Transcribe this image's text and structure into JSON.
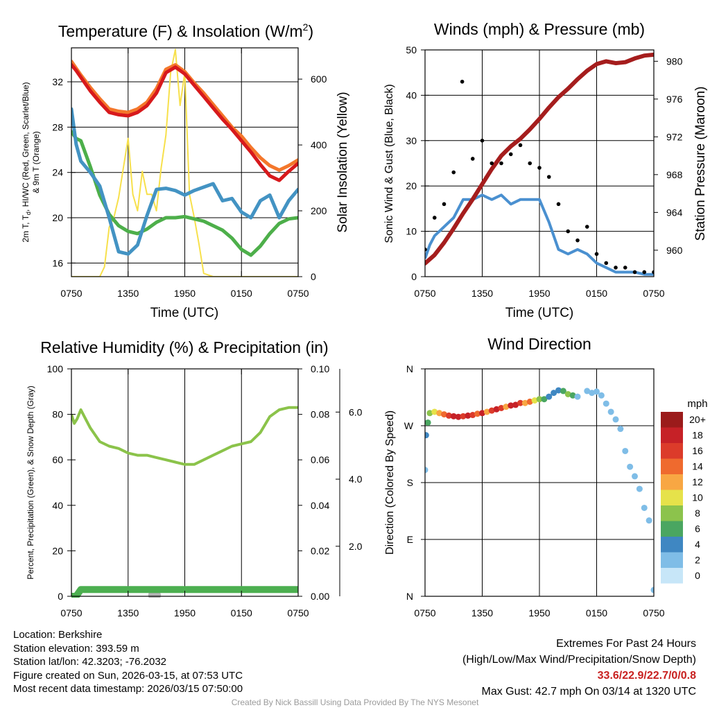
{
  "colors": {
    "temp": "#d7191c",
    "wc": "#f4772b",
    "dew": "#4393c3",
    "hi": "#4daf4a",
    "solar": "#f7e04b",
    "gust": "#000000",
    "wind": "#4a90d0",
    "pressure": "#a51d1d",
    "rh": "#8bc34a",
    "precip": "#4caf50",
    "snow": "#b3b3b3",
    "extremes": "#c8201f"
  },
  "chart_data": [
    {
      "type": "line",
      "id": "temperature",
      "title": "Temperature (F) & Insolation (W/m²)",
      "xlabel": "Time (UTC)",
      "ylabel": "2m T, T_d, HI/WC (Red, Green, Scarlet/Blue) & 9m T (Orange)",
      "ylabel_line1": "2m T, T",
      "ylabel_sub": "d",
      "ylabel_line1_rest": ", HI/WC (Red, Green, Scarlet/Blue)",
      "ylabel_line2": "& 9m T (Orange)",
      "y2label": "Solar Insolation (Yellow)",
      "xticks": [
        "0750",
        "1350",
        "1950",
        "0150",
        "0750"
      ],
      "x_range_hours": [
        0,
        24
      ],
      "ylim": [
        14.8,
        35
      ],
      "yticks": [
        16,
        20,
        24,
        28,
        32
      ],
      "y2lim": [
        0,
        695
      ],
      "y2ticks": [
        0,
        200,
        400,
        600
      ],
      "series": [
        {
          "name": "9m T",
          "color_key": "wc",
          "axis": "left",
          "x": [
            0,
            0.5,
            1,
            2,
            3,
            4,
            5,
            6,
            7,
            8,
            9,
            10,
            11,
            12,
            13,
            14,
            15,
            16,
            17,
            18,
            19,
            20,
            21,
            22,
            23,
            24
          ],
          "y": [
            33.8,
            33.2,
            32.6,
            31.5,
            30.5,
            29.6,
            29.4,
            29.3,
            29.6,
            30.2,
            31.4,
            33.1,
            33.5,
            32.9,
            31.9,
            31.0,
            30.0,
            29.0,
            28.0,
            27.2,
            26.2,
            25.3,
            24.6,
            24.2,
            24.6,
            25.1
          ]
        },
        {
          "name": "2m T",
          "color_key": "temp",
          "axis": "left",
          "x": [
            0,
            0.5,
            1,
            2,
            3,
            4,
            5,
            6,
            7,
            8,
            9,
            10,
            11,
            12,
            13,
            14,
            15,
            16,
            17,
            18,
            19,
            20,
            21,
            22,
            23,
            24
          ],
          "y": [
            33.5,
            33.0,
            32.4,
            31.2,
            30.2,
            29.3,
            29.1,
            29.0,
            29.3,
            29.9,
            31.0,
            32.8,
            33.3,
            32.7,
            31.7,
            30.7,
            29.7,
            28.7,
            27.8,
            26.8,
            25.8,
            24.7,
            23.7,
            23.3,
            24.1,
            24.8
          ]
        },
        {
          "name": "Dew point",
          "color_key": "dew",
          "axis": "left",
          "x": [
            0,
            0.5,
            1,
            2,
            3,
            4,
            5,
            6,
            7,
            8,
            9,
            10,
            11,
            12,
            13,
            14,
            15,
            16,
            17,
            18,
            19,
            20,
            21,
            22,
            23,
            24
          ],
          "y": [
            29.6,
            26.5,
            25.0,
            24.0,
            22.8,
            20.0,
            17.0,
            16.8,
            17.6,
            20.2,
            22.5,
            22.6,
            22.4,
            22.0,
            22.4,
            22.7,
            23.0,
            21.5,
            21.7,
            20.5,
            20.0,
            21.5,
            22.0,
            20.0,
            21.5,
            22.5
          ]
        },
        {
          "name": "HI/WC",
          "color_key": "hi",
          "axis": "left",
          "x": [
            0,
            0.5,
            1,
            2,
            3,
            4,
            5,
            6,
            7,
            8,
            9,
            10,
            11,
            12,
            13,
            14,
            15,
            16,
            17,
            18,
            19,
            20,
            21,
            22,
            23,
            24
          ],
          "y": [
            27.6,
            27.0,
            26.8,
            24.5,
            22.0,
            20.3,
            19.3,
            18.8,
            18.6,
            19.0,
            19.6,
            20.0,
            20.0,
            20.1,
            19.9,
            19.7,
            19.3,
            18.9,
            18.2,
            17.2,
            16.7,
            17.5,
            18.6,
            19.5,
            19.9,
            20.0
          ]
        },
        {
          "name": "Solar",
          "color_key": "solar",
          "axis": "right",
          "x": [
            0,
            2,
            3,
            3.5,
            4,
            4.5,
            5,
            5.5,
            6,
            6.5,
            7,
            7.5,
            8,
            8.5,
            9,
            9.5,
            10,
            10.5,
            11,
            11.5,
            12,
            12.5,
            13,
            13.5,
            14,
            15,
            16,
            17,
            18,
            19,
            20,
            21,
            22,
            23,
            24
          ],
          "y": [
            0,
            0,
            0,
            30,
            150,
            180,
            240,
            330,
            420,
            250,
            200,
            320,
            250,
            250,
            200,
            330,
            430,
            620,
            690,
            520,
            620,
            250,
            180,
            100,
            10,
            0,
            0,
            0,
            0,
            0,
            0,
            0,
            0,
            0,
            0
          ]
        }
      ]
    },
    {
      "type": "line",
      "id": "winds",
      "title": "Winds (mph) & Pressure (mb)",
      "xlabel": "Time (UTC)",
      "ylabel": "Sonic Wind & Gust (Blue, Black)",
      "y2label": "Station Pressure (Maroon)",
      "xticks": [
        "0750",
        "1350",
        "1950",
        "0150",
        "0750"
      ],
      "x_range_hours": [
        0,
        24
      ],
      "ylim": [
        0,
        50
      ],
      "yticks": [
        0,
        10,
        20,
        30,
        40,
        50
      ],
      "y2lim": [
        957.2,
        981.2
      ],
      "y2ticks": [
        960,
        964,
        968,
        972,
        976,
        980
      ],
      "series": [
        {
          "name": "Sonic Wind",
          "color_key": "wind",
          "axis": "left",
          "x": [
            0,
            0.5,
            1,
            2,
            3,
            4,
            5,
            6,
            7,
            8,
            9,
            10,
            11,
            12,
            13,
            14,
            15,
            16,
            17,
            18,
            19,
            20,
            21,
            22,
            23,
            24
          ],
          "y": [
            4,
            7,
            9,
            11,
            13,
            17,
            17,
            18,
            17,
            18,
            16,
            17,
            17,
            17,
            12,
            6,
            5,
            6,
            5,
            3,
            2,
            1,
            1,
            1,
            0.5,
            0.5
          ]
        },
        {
          "name": "Station Pressure",
          "color_key": "pressure",
          "axis": "right",
          "x": [
            0,
            1,
            2,
            3,
            4,
            5,
            6,
            7,
            8,
            9,
            10,
            11,
            12,
            13,
            14,
            15,
            16,
            17,
            18,
            19,
            20,
            21,
            22,
            23,
            24
          ],
          "y": [
            958.6,
            959.5,
            960.8,
            962.3,
            963.9,
            965.4,
            967.0,
            968.6,
            970.0,
            971.0,
            971.8,
            972.8,
            973.9,
            975.1,
            976.2,
            977.1,
            978.1,
            979.0,
            979.7,
            980.0,
            979.8,
            979.9,
            980.3,
            980.6,
            980.7
          ]
        },
        {
          "name": "Gust",
          "color_key": "gust",
          "axis": "left",
          "type": "scatter",
          "x": [
            0,
            1,
            2,
            3,
            3.9,
            5,
            6,
            7,
            8,
            9,
            10,
            11,
            12,
            13,
            14,
            15,
            16,
            17,
            18,
            19,
            20,
            21,
            22,
            23,
            24
          ],
          "y": [
            6,
            13,
            16,
            23,
            43,
            26,
            30,
            25,
            25,
            27,
            29,
            25,
            24,
            22,
            16,
            10,
            8,
            11,
            5,
            3,
            2,
            2,
            1,
            1,
            1
          ]
        }
      ]
    },
    {
      "type": "line",
      "id": "humidity",
      "title": "Relative Humidity (%) & Precipitation (in)",
      "ylabel": "Percent, Precipitation (Green), & Snow Depth (Gray)",
      "xticks": [
        "0750",
        "1350",
        "1950",
        "0150",
        "0750"
      ],
      "x_range_hours": [
        0,
        24
      ],
      "ylim": [
        0,
        100
      ],
      "yticks": [
        0,
        20,
        40,
        60,
        80,
        100
      ],
      "y2lim": [
        0,
        0.1
      ],
      "y2ticks": [
        "0.00",
        "0.02",
        "0.04",
        "0.06",
        "0.08",
        "0.10"
      ],
      "y3ticks": [
        "2.0",
        "4.0",
        "6.0"
      ],
      "series": [
        {
          "name": "RH",
          "color_key": "rh",
          "axis": "left",
          "x": [
            0,
            0.3,
            0.6,
            1,
            1.5,
            2,
            3,
            4,
            5,
            6,
            7,
            8,
            9,
            10,
            11,
            12,
            13,
            14,
            15,
            16,
            17,
            18,
            19,
            20,
            21,
            22,
            23,
            24
          ],
          "y": [
            80,
            76,
            78,
            82,
            78,
            74,
            68,
            66,
            65,
            63,
            62,
            62,
            61,
            60,
            59,
            58,
            58,
            60,
            62,
            64,
            66,
            67,
            68,
            72,
            79,
            82,
            83,
            83
          ]
        },
        {
          "name": "Precipitation",
          "color_key": "precip",
          "axis": "right",
          "x": [
            0,
            0.5,
            1,
            24
          ],
          "y": [
            0,
            0,
            0.003,
            0.003
          ]
        },
        {
          "name": "Snow Depth",
          "color_key": "snow",
          "axis": "left",
          "x": [
            8.6,
            8.8,
            9.0
          ],
          "y": [
            0.5,
            1.5,
            0.5
          ]
        }
      ]
    },
    {
      "type": "scatter",
      "id": "wind-direction",
      "title": "Wind Direction",
      "ylabel": "Direction (Colored By Speed)",
      "xticks": [
        "0750",
        "1350",
        "1950",
        "0150",
        "0750"
      ],
      "x_range_hours": [
        0,
        24
      ],
      "yticks": [
        "N",
        "E",
        "S",
        "W",
        "N"
      ],
      "ylim_degrees": [
        0,
        360
      ],
      "colorbar_title": "mph",
      "colorbar_labels": [
        "20+",
        "18",
        "16",
        "14",
        "12",
        "10",
        "8",
        "6",
        "4",
        "2",
        "0"
      ],
      "colorbar_colors": [
        "#9b1b1b",
        "#c62127",
        "#dc3b2a",
        "#ef6a2e",
        "#f8a743",
        "#e6e24a",
        "#8cc34c",
        "#4aa661",
        "#3f87c2",
        "#7fbde7",
        "#c7e6f8"
      ],
      "x": [
        0,
        0.1,
        0.3,
        0.5,
        1,
        1.5,
        2,
        2.5,
        3,
        3.5,
        4,
        4.5,
        5,
        5.5,
        6,
        6.5,
        7,
        7.5,
        8,
        8.5,
        9,
        9.5,
        10,
        10.5,
        11,
        11.5,
        12,
        12.5,
        13,
        13.5,
        14,
        14.5,
        15,
        15.5,
        16,
        17,
        17.5,
        18,
        18.5,
        19,
        19.5,
        20,
        20.5,
        21,
        21.5,
        22,
        22.5,
        23,
        23.5,
        24
      ],
      "y": [
        200,
        255,
        275,
        290,
        292,
        290,
        288,
        286,
        285,
        284,
        285,
        286,
        287,
        289,
        290,
        292,
        294,
        296,
        298,
        300,
        302,
        303,
        306,
        306,
        308,
        310,
        312,
        312,
        316,
        322,
        326,
        325,
        320,
        318,
        316,
        325,
        322,
        324,
        318,
        305,
        292,
        280,
        265,
        230,
        205,
        190,
        170,
        140,
        120,
        10
      ],
      "speed": [
        2,
        4,
        6,
        8,
        10,
        12,
        14,
        16,
        18,
        18,
        16,
        18,
        16,
        14,
        18,
        12,
        16,
        18,
        16,
        12,
        18,
        18,
        16,
        12,
        14,
        10,
        8,
        6,
        4,
        4,
        4,
        6,
        8,
        6,
        2,
        2,
        2,
        2,
        2,
        2,
        2,
        2,
        2,
        2,
        2,
        2,
        2,
        2,
        2,
        2
      ]
    }
  ],
  "info": {
    "location": "Location: Berkshire",
    "elevation": "Station elevation: 393.59 m",
    "latlon": "Station lat/lon: 42.3203; -76.2032",
    "created": "Figure created on Sun, 2026-03-15, at 07:53 UTC",
    "recent": "Most recent data timestamp: 2026/03/15 07:50:00"
  },
  "extremes": {
    "title": "Extremes For Past 24 Hours",
    "subtitle": "(High/Low/Max Wind/Precipitation/Snow Depth)",
    "values": "33.6/22.9/22.7/0/0.8",
    "max_gust": "Max Gust: 42.7 mph On 03/14 at 1320 UTC"
  },
  "footer": "Created By Nick Bassill Using Data Provided By The NYS Mesonet"
}
